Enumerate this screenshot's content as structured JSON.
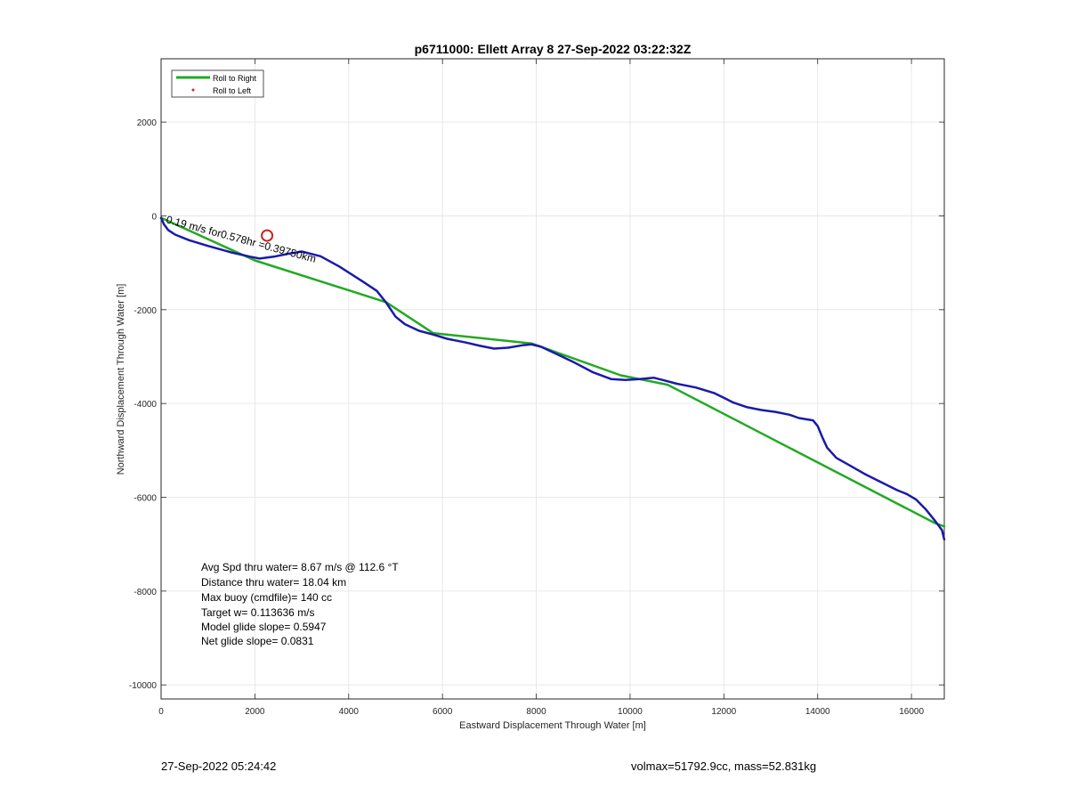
{
  "chart_data": {
    "type": "line",
    "title": "p6711000: Ellett Array 8 27-Sep-2022 03:22:32Z",
    "xlabel": "Eastward Displacement Through Water [m]",
    "ylabel": "Northward Displacement Through Water [m]",
    "xlim": [
      0,
      16700
    ],
    "ylim": [
      -10300,
      3350
    ],
    "xticks": [
      0,
      2000,
      4000,
      6000,
      8000,
      10000,
      12000,
      14000,
      16000
    ],
    "yticks": [
      -10000,
      -8000,
      -6000,
      -4000,
      -2000,
      0,
      2000
    ],
    "grid": true,
    "legend": {
      "placement": "top-left",
      "entries": [
        {
          "label": "Roll to Right",
          "color": "#22aa22",
          "marker": "line"
        },
        {
          "label": "Roll to Left",
          "color": "#e02020",
          "marker": "dot"
        }
      ]
    },
    "series": [
      {
        "color": "#22aa22",
        "x": [
          0,
          2000,
          4800,
          5800,
          7900,
          9800,
          10800,
          16500,
          16700
        ],
        "y": [
          -40,
          -950,
          -1840,
          -2500,
          -2720,
          -3400,
          -3600,
          -6550,
          -6620
        ]
      },
      {
        "color": "#1a1aaa",
        "x": [
          0,
          60,
          150,
          300,
          600,
          1000,
          1500,
          1900,
          2100,
          2400,
          2700,
          3000,
          3400,
          3800,
          4300,
          4600,
          4800,
          5000,
          5200,
          5500,
          5800,
          6100,
          6500,
          6800,
          7100,
          7400,
          7700,
          7900,
          8100,
          8400,
          8800,
          9200,
          9600,
          9900,
          10200,
          10500,
          10700,
          11000,
          11400,
          11800,
          12000,
          12200,
          12500,
          12800,
          13100,
          13400,
          13600,
          13900,
          14000,
          14100,
          14200,
          14400,
          14700,
          15000,
          15400,
          15700,
          15900,
          16100,
          16300,
          16500,
          16650,
          16700
        ],
        "y": [
          -40,
          -180,
          -300,
          -400,
          -520,
          -640,
          -780,
          -870,
          -910,
          -870,
          -810,
          -760,
          -860,
          -1080,
          -1400,
          -1600,
          -1850,
          -2150,
          -2310,
          -2450,
          -2530,
          -2620,
          -2700,
          -2770,
          -2830,
          -2810,
          -2760,
          -2740,
          -2790,
          -2930,
          -3120,
          -3330,
          -3480,
          -3500,
          -3480,
          -3450,
          -3500,
          -3580,
          -3660,
          -3780,
          -3880,
          -3980,
          -4080,
          -4140,
          -4180,
          -4240,
          -4310,
          -4360,
          -4480,
          -4720,
          -4940,
          -5160,
          -5330,
          -5500,
          -5700,
          -5850,
          -5930,
          -6050,
          -6250,
          -6500,
          -6700,
          -6900
        ]
      }
    ],
    "annotations": {
      "line1": "Avg Spd thru water=  8.67 m/s @ 112.6 °T",
      "line2": "Distance thru water= 18.04 km",
      "line3": "Max buoy (cmdfile)= 140 cc",
      "line4": "Target w= 0.113636 m/s",
      "line5": "Model glide slope= 0.5947",
      "line6": "Net glide slope= 0.0831",
      "rotated_label": "0.19 m/s for0.578hr =0.39750km"
    },
    "marker_circle": {
      "x": 2260,
      "y": -420,
      "color": "#cc2222"
    }
  },
  "footer": {
    "left": "27-Sep-2022 05:24:42",
    "right": "volmax=51792.9cc, mass=52.831kg"
  }
}
